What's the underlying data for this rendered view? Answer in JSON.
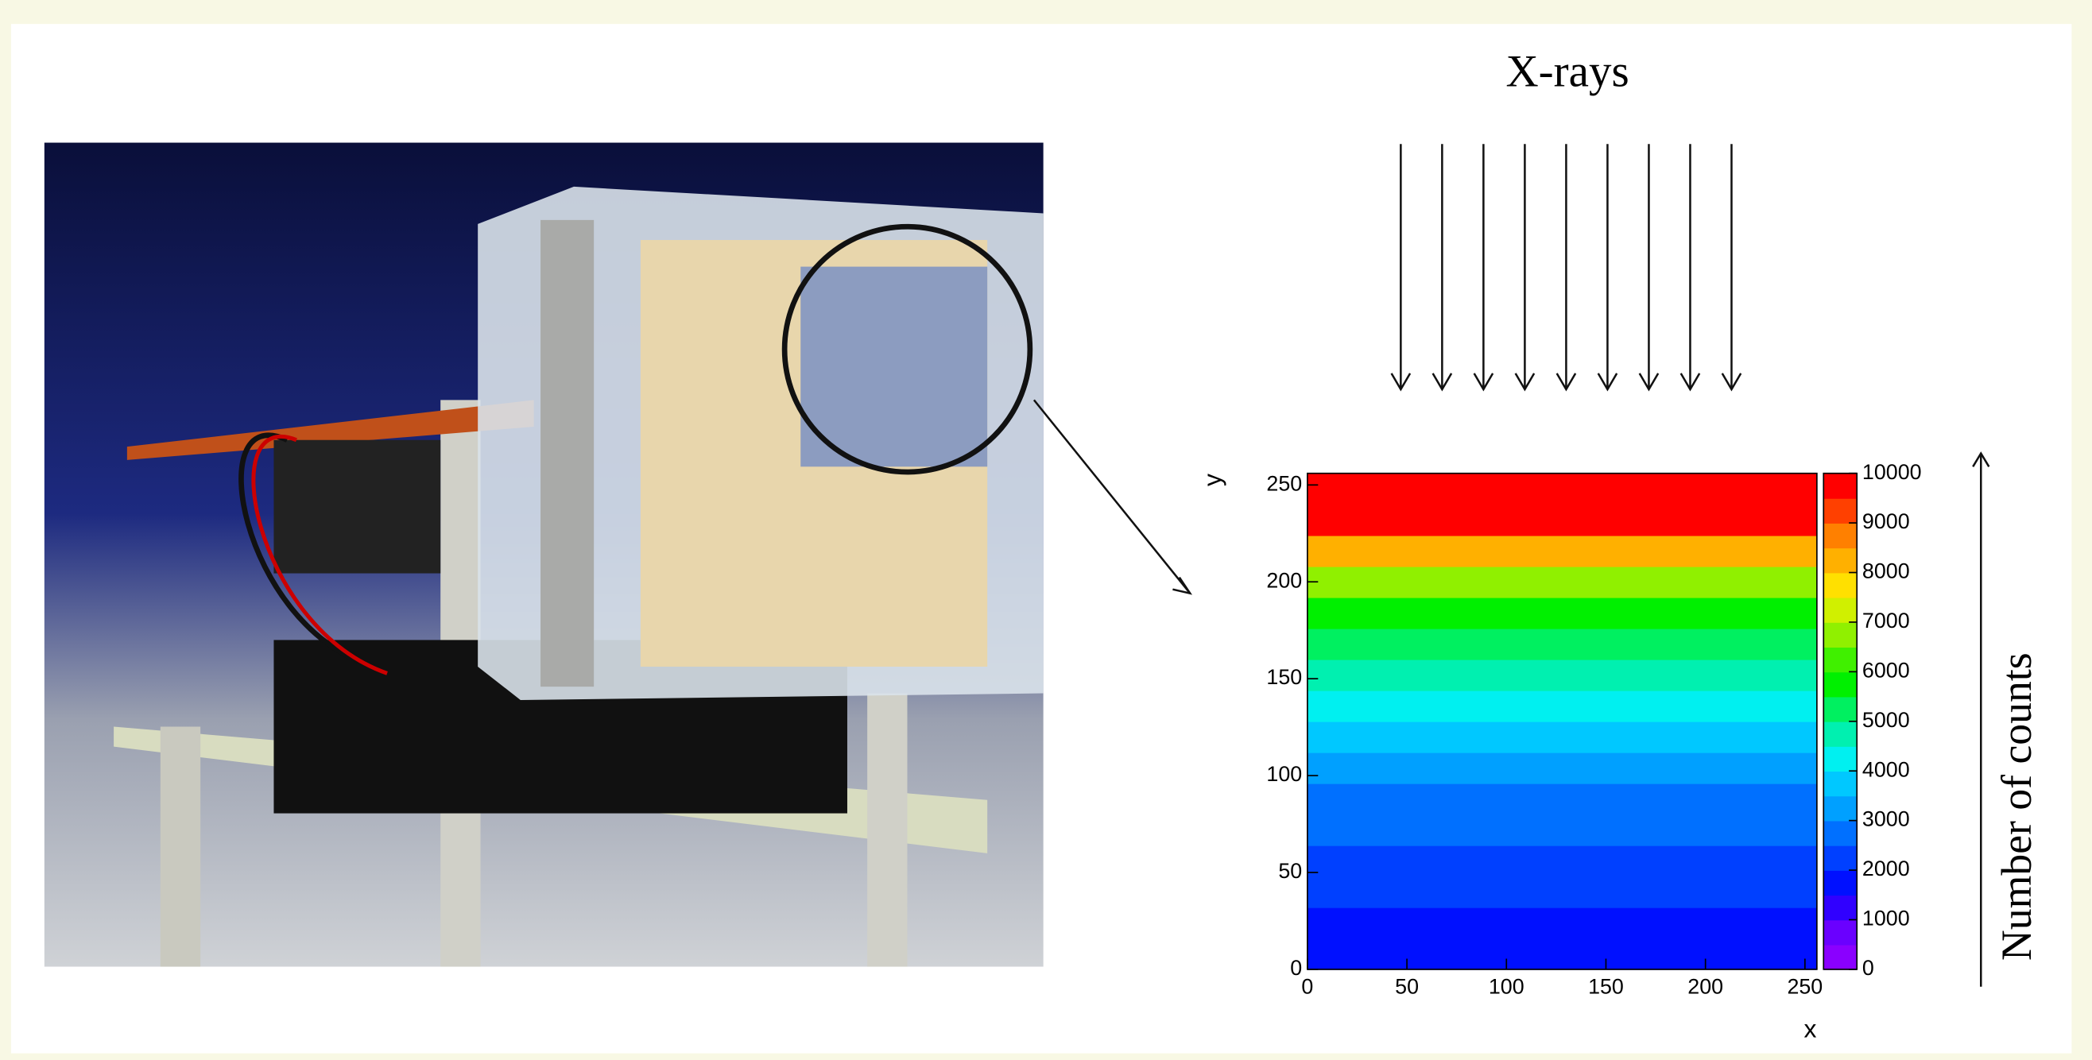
{
  "chart_data": {
    "type": "heatmap",
    "annotations": [
      "X-rays",
      "Number of counts"
    ],
    "x_label": "x",
    "y_label": "y",
    "xlim": [
      0,
      256
    ],
    "xticks": [
      0,
      50,
      100,
      150,
      200,
      250
    ],
    "ylim": [
      0,
      256
    ],
    "yticks": [
      0,
      50,
      100,
      150,
      200,
      250
    ],
    "ybins": [
      0,
      16,
      32,
      48,
      64,
      80,
      96,
      112,
      128,
      144,
      160,
      176,
      192,
      208,
      224,
      240,
      256
    ],
    "values": [
      1500,
      1800,
      2000,
      2300,
      2600,
      2900,
      3300,
      3700,
      4200,
      4700,
      5200,
      5800,
      6500,
      8000,
      10000,
      10000
    ],
    "zlim": [
      0,
      10000
    ],
    "zticks": [
      0,
      1000,
      2000,
      3000,
      4000,
      5000,
      6000,
      7000,
      8000,
      9000,
      10000
    ],
    "colors": [
      "#8a00ff",
      "#6a00ff",
      "#3000ff",
      "#0010ff",
      "#0040ff",
      "#0070ff",
      "#00a0ff",
      "#00c8ff",
      "#00f0f0",
      "#00f0b0",
      "#00f060",
      "#00f000",
      "#40f000",
      "#90f000",
      "#d0f000",
      "#ffe000",
      "#ffb000",
      "#ff8000",
      "#ff4000",
      "#ff0000"
    ]
  }
}
